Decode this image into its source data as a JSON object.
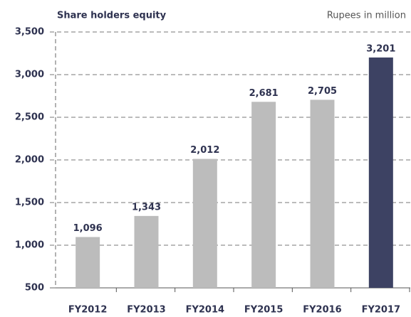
{
  "chart_data": {
    "type": "bar",
    "title": "Share holders equity",
    "subtitle": "Rupees in million",
    "categories": [
      "FY2012",
      "FY2013",
      "FY2014",
      "FY2015",
      "FY2016",
      "FY2017"
    ],
    "values": [
      1096,
      1343,
      2012,
      2681,
      2705,
      3201
    ],
    "value_labels": [
      "1,096",
      "1,343",
      "2,012",
      "2,681",
      "2,705",
      "3,201"
    ],
    "colors": [
      "#bcbcbc",
      "#bcbcbc",
      "#bcbcbc",
      "#bcbcbc",
      "#bcbcbc",
      "#3d4263"
    ],
    "ylim": [
      500,
      3500
    ],
    "yticks": [
      500,
      {
        "value": 1000,
        "label": "1,000"
      },
      {
        "value": 1500,
        "label": "1,500"
      },
      {
        "value": 2000,
        "label": "2,000"
      },
      {
        "value": 2500,
        "label": "2,500"
      },
      {
        "value": 3000,
        "label": "3,000"
      },
      {
        "value": 3500,
        "label": "3,500"
      }
    ],
    "grid": true
  }
}
